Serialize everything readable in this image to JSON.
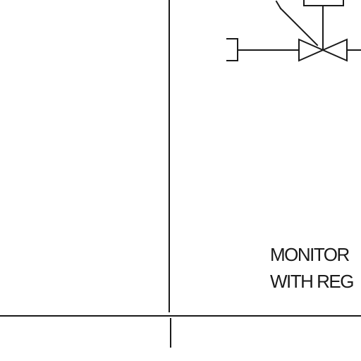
{
  "diagram": {
    "caption": {
      "line1": "MONITOR",
      "line2": "WITH REG"
    },
    "symbols": {
      "valve": "globe-valve-icon",
      "actuator": "valve-actuator-icon",
      "pipe_end": "pipe-cap-icon"
    },
    "colors": {
      "ink": "#1a1a1a",
      "paper": "#ffffff"
    }
  }
}
